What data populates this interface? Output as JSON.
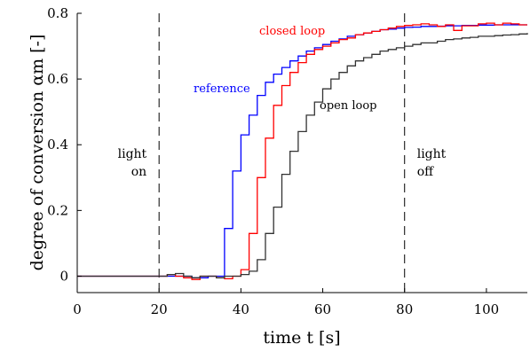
{
  "chart_data": {
    "type": "line",
    "xlabel": "time t [s]",
    "ylabel": "degree of conversion αm [-]",
    "xlim": [
      0,
      110
    ],
    "ylim": [
      -0.05,
      0.8
    ],
    "xticks": [
      "0",
      "20",
      "40",
      "60",
      "80",
      "100"
    ],
    "yticks": [
      "0",
      "0.2",
      "0.4",
      "0.6",
      "0.8"
    ],
    "grid": false,
    "legend": "none (inline labels)",
    "step": true,
    "events": [
      {
        "x": 20,
        "text": [
          "light",
          "on"
        ]
      },
      {
        "x": 80,
        "text": [
          "light",
          "off"
        ]
      }
    ],
    "series": [
      {
        "name": "reference",
        "color": "#0000ff",
        "x": [
          0,
          20,
          22,
          24,
          26,
          28,
          30,
          32,
          34,
          36,
          38,
          40,
          42,
          44,
          46,
          48,
          50,
          52,
          54,
          56,
          58,
          60,
          62,
          64,
          66,
          68,
          70,
          72,
          74,
          76,
          78,
          80,
          82,
          84,
          86,
          88,
          90,
          92,
          94,
          96,
          98,
          100,
          102,
          104,
          106,
          108,
          110
        ],
        "y": [
          0,
          0,
          0,
          0,
          0,
          -0.005,
          -0.005,
          0,
          0,
          0.145,
          0.32,
          0.43,
          0.49,
          0.55,
          0.59,
          0.615,
          0.635,
          0.655,
          0.67,
          0.685,
          0.695,
          0.705,
          0.715,
          0.722,
          0.73,
          0.735,
          0.74,
          0.745,
          0.75,
          0.752,
          0.755,
          0.757,
          0.758,
          0.76,
          0.76,
          0.761,
          0.762,
          0.762,
          0.763,
          0.763,
          0.764,
          0.764,
          0.765,
          0.765,
          0.765,
          0.765,
          0.765
        ]
      },
      {
        "name": "closed loop",
        "color": "#ff0000",
        "x": [
          0,
          20,
          22,
          24,
          26,
          28,
          30,
          32,
          34,
          36,
          38,
          40,
          42,
          44,
          46,
          48,
          50,
          52,
          54,
          56,
          58,
          60,
          62,
          64,
          66,
          68,
          70,
          72,
          74,
          76,
          78,
          80,
          82,
          84,
          86,
          88,
          90,
          92,
          94,
          96,
          98,
          100,
          102,
          104,
          106,
          108,
          110
        ],
        "y": [
          0,
          0,
          0.005,
          0,
          -0.005,
          -0.01,
          0,
          0,
          -0.005,
          -0.008,
          0,
          0.02,
          0.13,
          0.3,
          0.42,
          0.52,
          0.58,
          0.62,
          0.65,
          0.675,
          0.69,
          0.7,
          0.71,
          0.72,
          0.725,
          0.735,
          0.74,
          0.745,
          0.75,
          0.755,
          0.76,
          0.763,
          0.765,
          0.768,
          0.765,
          0.76,
          0.765,
          0.748,
          0.762,
          0.762,
          0.768,
          0.77,
          0.765,
          0.77,
          0.768,
          0.765,
          0.765
        ]
      },
      {
        "name": "open loop",
        "color": "#333333",
        "x": [
          0,
          20,
          22,
          24,
          26,
          28,
          30,
          32,
          34,
          36,
          38,
          40,
          42,
          44,
          46,
          48,
          50,
          52,
          54,
          56,
          58,
          60,
          62,
          64,
          66,
          68,
          70,
          72,
          74,
          76,
          78,
          80,
          82,
          84,
          86,
          88,
          90,
          92,
          94,
          96,
          98,
          100,
          102,
          104,
          106,
          108,
          110
        ],
        "y": [
          0,
          0,
          0.005,
          0.008,
          0,
          -0.005,
          0,
          0,
          -0.005,
          0,
          0,
          0.005,
          0.015,
          0.05,
          0.13,
          0.21,
          0.31,
          0.38,
          0.44,
          0.49,
          0.53,
          0.57,
          0.6,
          0.62,
          0.64,
          0.655,
          0.665,
          0.675,
          0.685,
          0.69,
          0.695,
          0.7,
          0.705,
          0.71,
          0.71,
          0.715,
          0.72,
          0.722,
          0.725,
          0.727,
          0.73,
          0.73,
          0.732,
          0.734,
          0.735,
          0.737,
          0.74
        ]
      }
    ]
  }
}
